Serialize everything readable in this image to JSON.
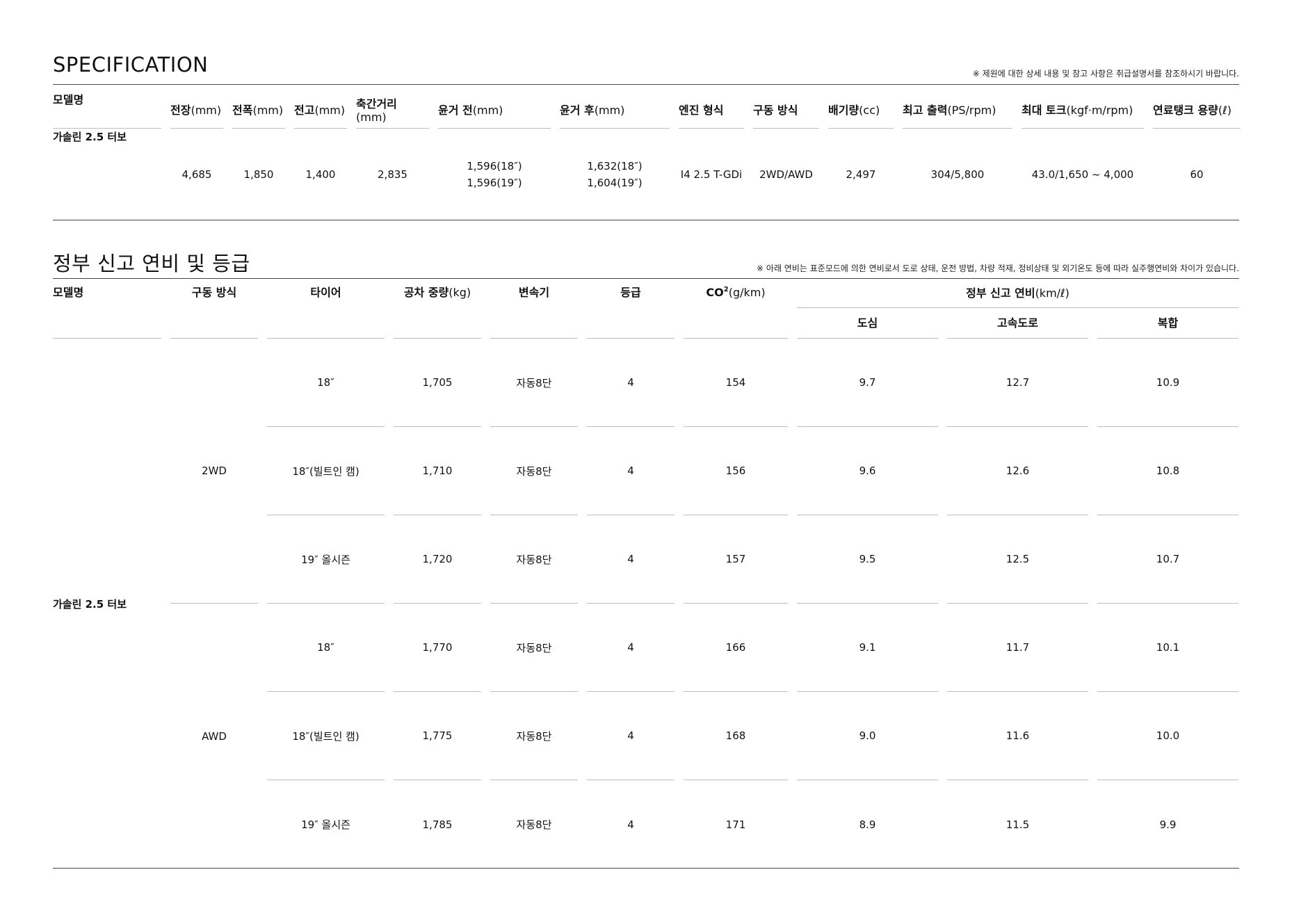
{
  "spec": {
    "title": "SPECIFICATION",
    "note": "※ 제원에 대한 상세 내용 및 참고 사항은 취급설명서를 참조하시기 바랍니다.",
    "headers": [
      {
        "label": "모델명",
        "unit": ""
      },
      {
        "label": "전장",
        "unit": "(mm)"
      },
      {
        "label": "전폭",
        "unit": "(mm)"
      },
      {
        "label": "전고",
        "unit": "(mm)"
      },
      {
        "label": "축간거리",
        "unit": "(mm)",
        "break": true
      },
      {
        "label": "윤거 전",
        "unit": "(mm)"
      },
      {
        "label": "윤거 후",
        "unit": "(mm)"
      },
      {
        "label": "엔진 형식",
        "unit": ""
      },
      {
        "label": "구동 방식",
        "unit": ""
      },
      {
        "label": "배기량",
        "unit": "(cc)"
      },
      {
        "label": "최고 출력",
        "unit": "(PS/rpm)"
      },
      {
        "label": "최대 토크",
        "unit": "(kgf·m/rpm)"
      },
      {
        "label": "연료탱크 용량",
        "unit": "(ℓ)"
      }
    ],
    "row": [
      [
        "가솔린 2.5 터보"
      ],
      [
        "4,685"
      ],
      [
        "1,850"
      ],
      [
        "1,400"
      ],
      [
        "2,835"
      ],
      [
        "1,596(18″)",
        "1,596(19″)"
      ],
      [
        "1,632(18″)",
        "1,604(19″)"
      ],
      [
        "I4 2.5 T-GDi"
      ],
      [
        "2WD/AWD"
      ],
      [
        "2,497"
      ],
      [
        "304/5,800"
      ],
      [
        "43.0/1,650 ~ 4,000"
      ],
      [
        "60"
      ]
    ]
  },
  "fuel": {
    "title": "정부 신고 연비 및 등급",
    "note": "※ 아래 연비는 표준모드에 의한 연비로서 도로 상태, 운전 방법, 차량 적재, 정비상태 및 외기온도 등에 따라 실주행연비와 차이가 있습니다.",
    "headers": {
      "model": "모델명",
      "drive": "구동 방식",
      "tire": "타이어",
      "weight": "공차 중량",
      "weight_unit": "(kg)",
      "transmission": "변속기",
      "grade": "등급",
      "co2": "CO",
      "co2_sub": "2",
      "co2_unit": "(g/km)",
      "efficiency": "정부 신고 연비",
      "efficiency_unit": "(km/ℓ)",
      "city": "도심",
      "highway": "고속도로",
      "combined": "복합"
    },
    "model": "가솔린 2.5 터보",
    "drives": [
      "2WD",
      "AWD"
    ],
    "rows": [
      [
        "18″",
        "1,705",
        "자동8단",
        "4",
        "154",
        "9.7",
        "12.7",
        "10.9"
      ],
      [
        "18″(빌트인 캠)",
        "1,710",
        "자동8단",
        "4",
        "156",
        "9.6",
        "12.6",
        "10.8"
      ],
      [
        "19″ 올시즌",
        "1,720",
        "자동8단",
        "4",
        "157",
        "9.5",
        "12.5",
        "10.7"
      ],
      [
        "18″",
        "1,770",
        "자동8단",
        "4",
        "166",
        "9.1",
        "11.7",
        "10.1"
      ],
      [
        "18″(빌트인 캠)",
        "1,775",
        "자동8단",
        "4",
        "168",
        "9.0",
        "11.6",
        "10.0"
      ],
      [
        "19″ 올시즌",
        "1,785",
        "자동8단",
        "4",
        "171",
        "8.9",
        "11.5",
        "9.9"
      ]
    ]
  }
}
